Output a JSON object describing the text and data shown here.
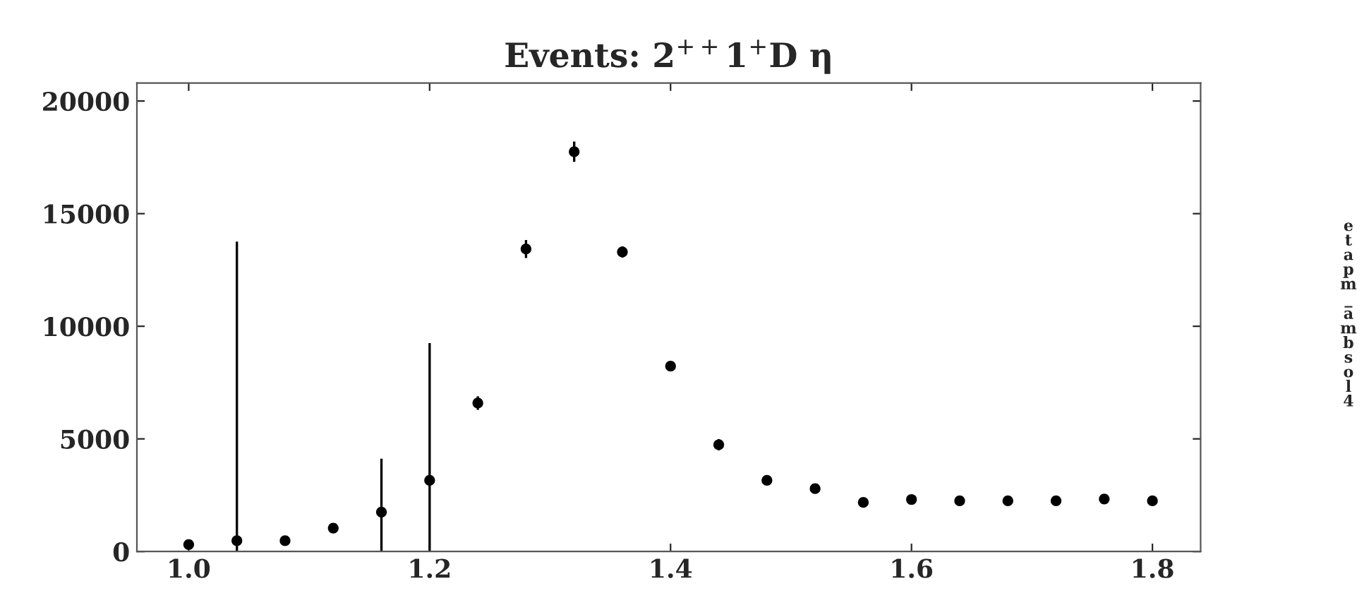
{
  "chart_data": {
    "type": "scatter",
    "title": "Events: 2$^{++}$1$^{+}$D η",
    "x": [
      1.0,
      1.04,
      1.08,
      1.12,
      1.16,
      1.2,
      1.24,
      1.28,
      1.32,
      1.36,
      1.4,
      1.44,
      1.48,
      1.52,
      1.56,
      1.6,
      1.64,
      1.68,
      1.72,
      1.76,
      1.8
    ],
    "values": [
      310,
      480,
      480,
      1040,
      1750,
      3160,
      6590,
      13430,
      17750,
      13300,
      8230,
      4740,
      3160,
      2790,
      2180,
      2310,
      2250,
      2250,
      2250,
      2330,
      2250
    ],
    "errors": [
      null,
      [
        0,
        13760
      ],
      null,
      null,
      [
        0,
        4120
      ],
      [
        0,
        9250
      ],
      300,
      400,
      450,
      250,
      200,
      250,
      null,
      null,
      null,
      null,
      null,
      null,
      null,
      null,
      null
    ],
    "color": "#000000",
    "marker": "circle",
    "xlim": [
      0.957,
      1.84
    ],
    "xticks": [
      {
        "value": 1.0,
        "label": "1.0"
      },
      1.2,
      1.4,
      1.6,
      1.8
    ],
    "ylim": [
      0,
      20800
    ],
    "yticks": [
      0,
      5000,
      10000,
      15000,
      20000
    ],
    "annotations": [
      "etapm_ambsol4"
    ],
    "grid": false,
    "legend": false
  }
}
